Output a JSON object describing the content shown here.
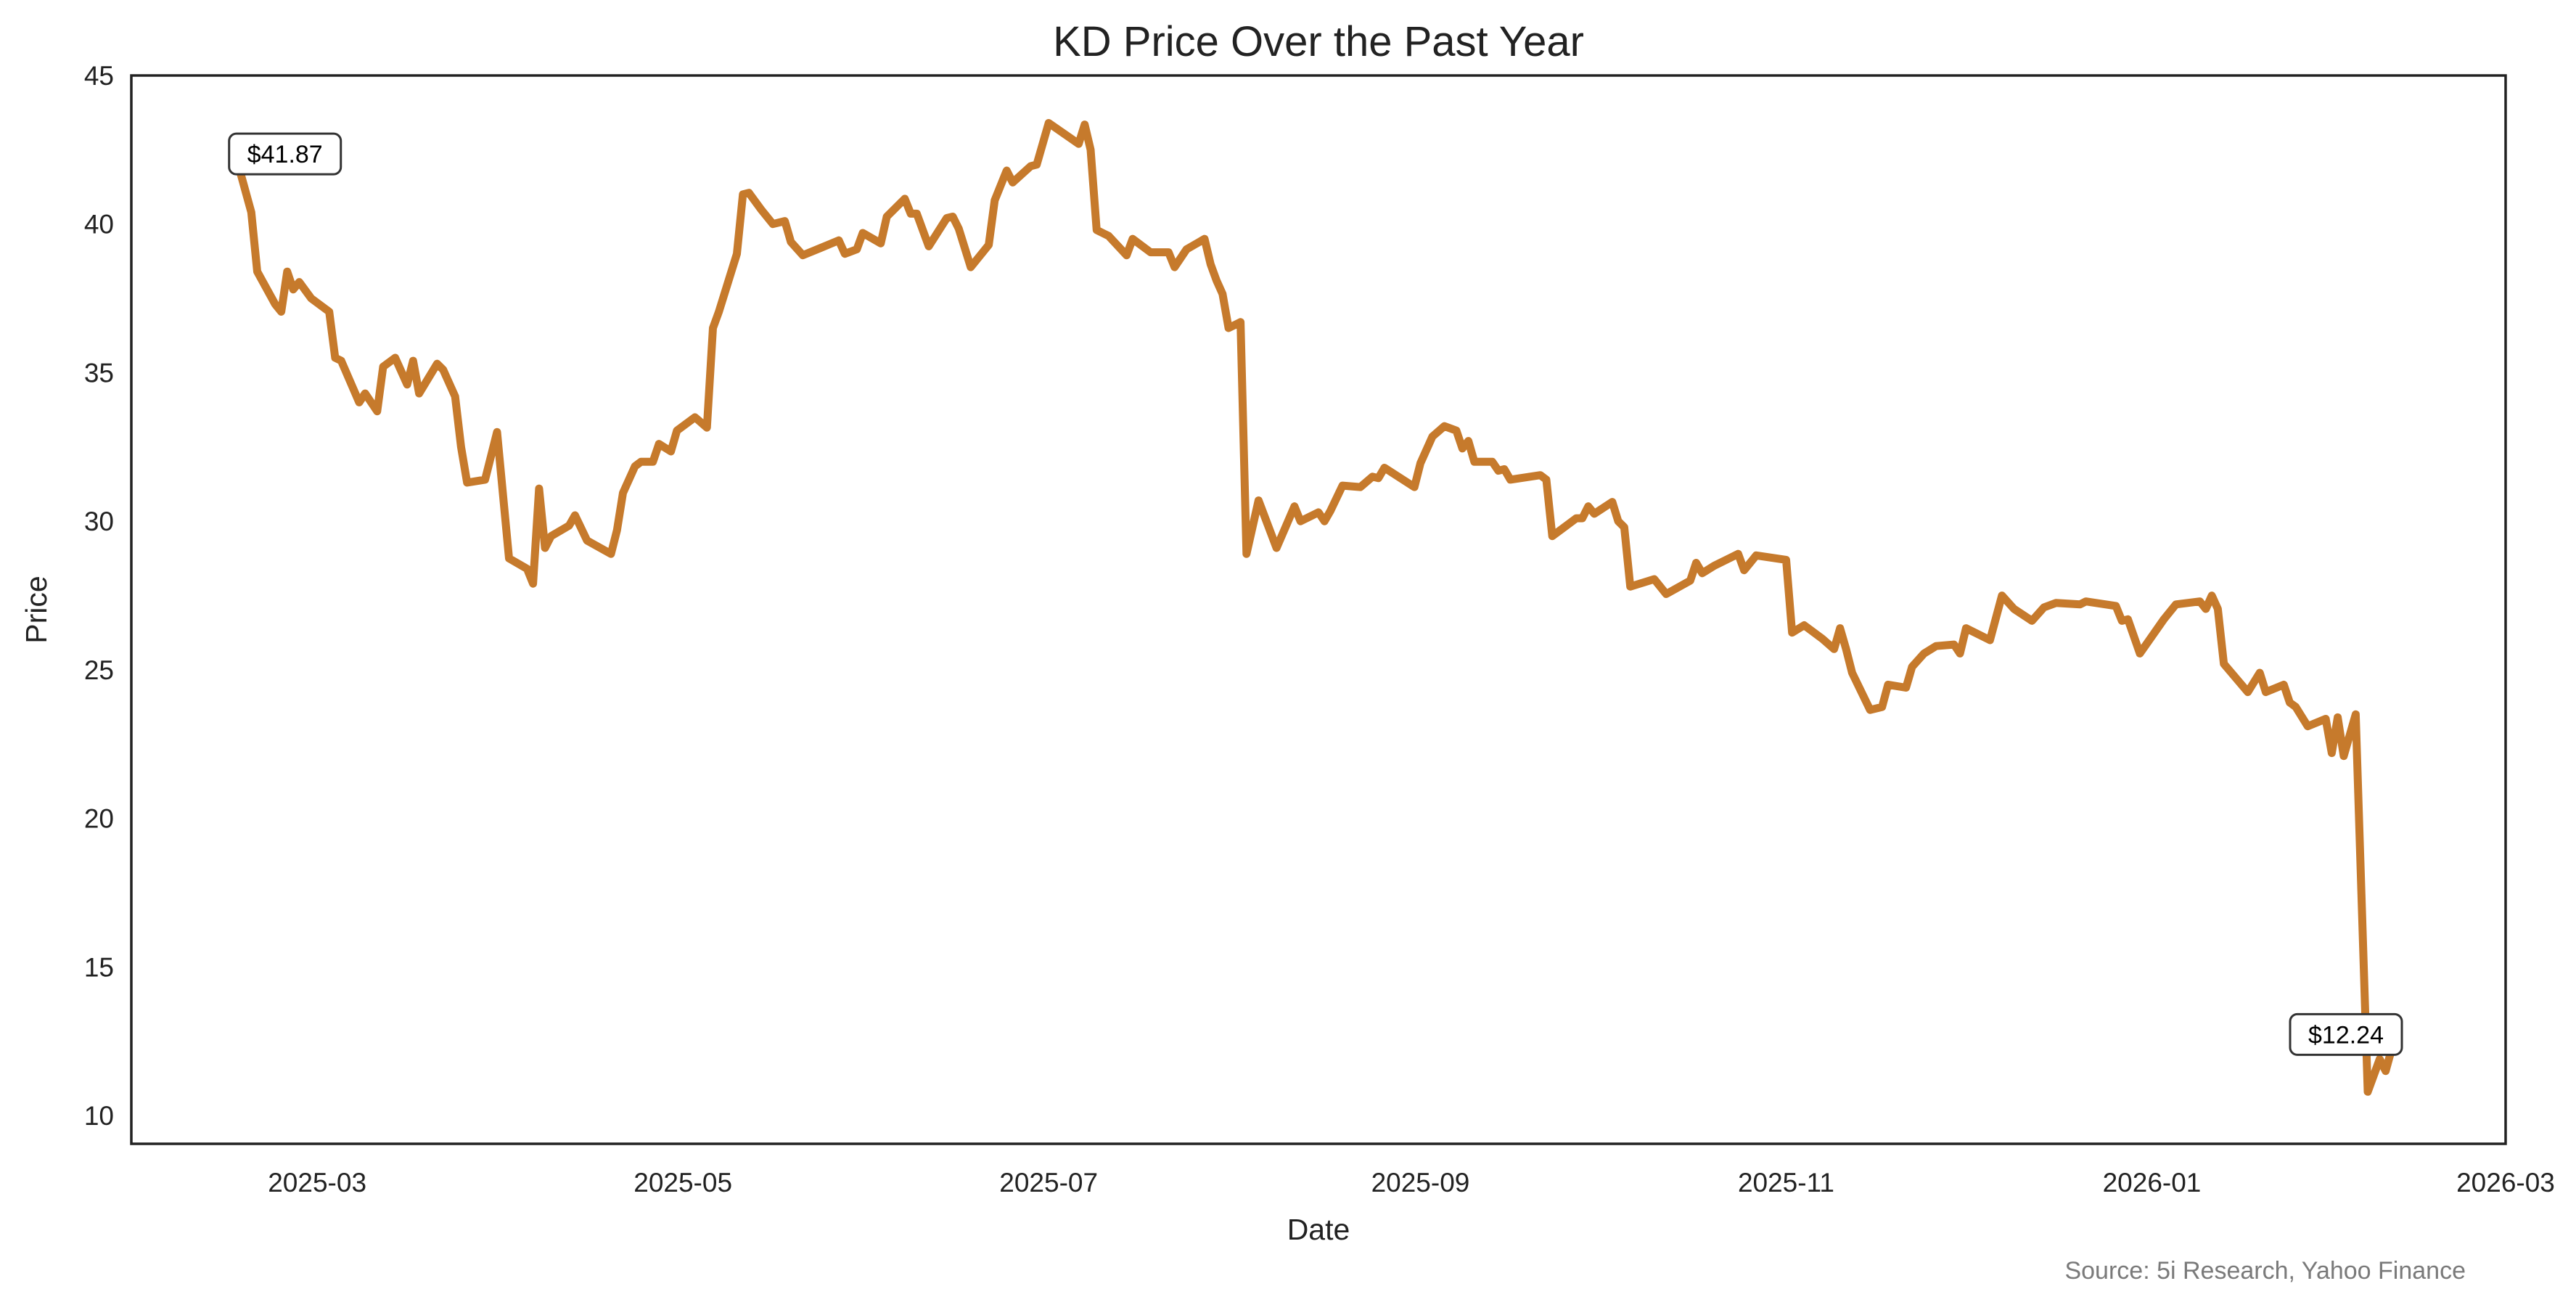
{
  "chart_data": {
    "type": "line",
    "title": "KD Price Over the Past Year",
    "xlabel": "Date",
    "ylabel": "Price",
    "source": "Source: 5i Research, Yahoo Finance",
    "xlim": [
      "2025-01-29",
      "2026-03-01"
    ],
    "ylim": [
      9.05,
      45
    ],
    "grid": false,
    "line_color": "#C67A2C",
    "x_ticks": [
      "2025-03",
      "2025-05",
      "2025-07",
      "2025-09",
      "2025-11",
      "2026-01",
      "2026-03"
    ],
    "y_ticks": [
      10,
      15,
      20,
      25,
      30,
      35,
      40,
      45
    ],
    "annotations": [
      {
        "date": "2025-02-16",
        "value": 41.87,
        "text": "$41.87"
      },
      {
        "date": "2026-02-10",
        "value": 12.24,
        "text": "$12.24"
      }
    ],
    "series": [
      {
        "name": "KD",
        "points": [
          [
            "2025-02-16",
            41.87
          ],
          [
            "2025-02-18",
            40.4
          ],
          [
            "2025-02-19",
            38.4
          ],
          [
            "2025-02-22",
            37.3
          ],
          [
            "2025-02-23",
            37.05
          ],
          [
            "2025-02-24",
            38.4
          ],
          [
            "2025-02-25",
            37.8
          ],
          [
            "2025-02-26",
            38.05
          ],
          [
            "2025-02-28",
            37.5
          ],
          [
            "2025-03-02",
            37.2
          ],
          [
            "2025-03-03",
            37.05
          ],
          [
            "2025-03-04",
            35.5
          ],
          [
            "2025-03-05",
            35.4
          ],
          [
            "2025-03-08",
            34.0
          ],
          [
            "2025-03-09",
            34.3
          ],
          [
            "2025-03-11",
            33.7
          ],
          [
            "2025-03-12",
            35.2
          ],
          [
            "2025-03-14",
            35.5
          ],
          [
            "2025-03-16",
            34.6
          ],
          [
            "2025-03-17",
            35.4
          ],
          [
            "2025-03-18",
            34.3
          ],
          [
            "2025-03-21",
            35.3
          ],
          [
            "2025-03-22",
            35.1
          ],
          [
            "2025-03-24",
            34.2
          ],
          [
            "2025-03-25",
            32.5
          ],
          [
            "2025-03-26",
            31.3
          ],
          [
            "2025-03-29",
            31.4
          ],
          [
            "2025-03-31",
            33.0
          ],
          [
            "2025-04-02",
            28.75
          ],
          [
            "2025-04-05",
            28.4
          ],
          [
            "2025-04-06",
            27.9
          ],
          [
            "2025-04-07",
            31.1
          ],
          [
            "2025-04-08",
            29.1
          ],
          [
            "2025-04-09",
            29.5
          ],
          [
            "2025-04-12",
            29.85
          ],
          [
            "2025-04-13",
            30.2
          ],
          [
            "2025-04-15",
            29.35
          ],
          [
            "2025-04-19",
            28.9
          ],
          [
            "2025-04-20",
            29.7
          ],
          [
            "2025-04-21",
            30.95
          ],
          [
            "2025-04-23",
            31.85
          ],
          [
            "2025-04-24",
            32.0
          ],
          [
            "2025-04-26",
            32.0
          ],
          [
            "2025-04-27",
            32.6
          ],
          [
            "2025-04-29",
            32.35
          ],
          [
            "2025-04-30",
            33.05
          ],
          [
            "2025-05-03",
            33.5
          ],
          [
            "2025-05-05",
            33.15
          ],
          [
            "2025-05-06",
            36.5
          ],
          [
            "2025-05-07",
            37.05
          ],
          [
            "2025-05-10",
            39.0
          ],
          [
            "2025-05-11",
            41.0
          ],
          [
            "2025-05-12",
            41.05
          ],
          [
            "2025-05-14",
            40.5
          ],
          [
            "2025-05-16",
            40.0
          ],
          [
            "2025-05-18",
            40.1
          ],
          [
            "2025-05-19",
            39.4
          ],
          [
            "2025-05-21",
            38.95
          ],
          [
            "2025-05-24",
            39.2
          ],
          [
            "2025-05-27",
            39.45
          ],
          [
            "2025-05-28",
            39.0
          ],
          [
            "2025-05-30",
            39.15
          ],
          [
            "2025-05-31",
            39.7
          ],
          [
            "2025-06-03",
            39.35
          ],
          [
            "2025-06-04",
            40.25
          ],
          [
            "2025-06-07",
            40.85
          ],
          [
            "2025-06-08",
            40.35
          ],
          [
            "2025-06-09",
            40.35
          ],
          [
            "2025-06-11",
            39.25
          ],
          [
            "2025-06-14",
            40.2
          ],
          [
            "2025-06-15",
            40.25
          ],
          [
            "2025-06-16",
            39.85
          ],
          [
            "2025-06-18",
            38.55
          ],
          [
            "2025-06-21",
            39.3
          ],
          [
            "2025-06-22",
            40.8
          ],
          [
            "2025-06-24",
            41.8
          ],
          [
            "2025-06-25",
            41.4
          ],
          [
            "2025-06-28",
            41.95
          ],
          [
            "2025-06-29",
            42.0
          ],
          [
            "2025-07-01",
            43.4
          ],
          [
            "2025-07-06",
            42.7
          ],
          [
            "2025-07-07",
            43.35
          ],
          [
            "2025-07-08",
            42.5
          ],
          [
            "2025-07-09",
            39.8
          ],
          [
            "2025-07-11",
            39.6
          ],
          [
            "2025-07-14",
            38.95
          ],
          [
            "2025-07-15",
            39.5
          ],
          [
            "2025-07-18",
            39.05
          ],
          [
            "2025-07-21",
            39.05
          ],
          [
            "2025-07-22",
            38.55
          ],
          [
            "2025-07-24",
            39.15
          ],
          [
            "2025-07-27",
            39.5
          ],
          [
            "2025-07-28",
            38.65
          ],
          [
            "2025-07-29",
            38.1
          ],
          [
            "2025-07-30",
            37.65
          ],
          [
            "2025-07-31",
            36.5
          ],
          [
            "2025-08-02",
            36.7
          ],
          [
            "2025-08-03",
            28.9
          ],
          [
            "2025-08-05",
            30.7
          ],
          [
            "2025-08-08",
            29.1
          ],
          [
            "2025-08-11",
            30.5
          ],
          [
            "2025-08-12",
            30.0
          ],
          [
            "2025-08-15",
            30.3
          ],
          [
            "2025-08-16",
            30.0
          ],
          [
            "2025-08-17",
            30.35
          ],
          [
            "2025-08-19",
            31.2
          ],
          [
            "2025-08-22",
            31.15
          ],
          [
            "2025-08-24",
            31.5
          ],
          [
            "2025-08-25",
            31.45
          ],
          [
            "2025-08-26",
            31.8
          ],
          [
            "2025-08-31",
            31.15
          ],
          [
            "2025-09-01",
            31.95
          ],
          [
            "2025-09-03",
            32.85
          ],
          [
            "2025-09-05",
            33.2
          ],
          [
            "2025-09-07",
            33.05
          ],
          [
            "2025-09-08",
            32.45
          ],
          [
            "2025-09-09",
            32.7
          ],
          [
            "2025-09-10",
            32.0
          ],
          [
            "2025-09-13",
            32.0
          ],
          [
            "2025-09-14",
            31.7
          ],
          [
            "2025-09-15",
            31.75
          ],
          [
            "2025-09-16",
            31.4
          ],
          [
            "2025-09-21",
            31.55
          ],
          [
            "2025-09-22",
            31.4
          ],
          [
            "2025-09-23",
            29.5
          ],
          [
            "2025-09-27",
            30.1
          ],
          [
            "2025-09-28",
            30.1
          ],
          [
            "2025-09-29",
            30.5
          ],
          [
            "2025-09-30",
            30.25
          ],
          [
            "2025-10-03",
            30.65
          ],
          [
            "2025-10-04",
            30.0
          ],
          [
            "2025-10-05",
            29.8
          ],
          [
            "2025-10-06",
            27.8
          ],
          [
            "2025-10-10",
            28.05
          ],
          [
            "2025-10-12",
            27.55
          ],
          [
            "2025-10-16",
            28.0
          ],
          [
            "2025-10-17",
            28.6
          ],
          [
            "2025-10-18",
            28.25
          ],
          [
            "2025-10-20",
            28.5
          ],
          [
            "2025-10-24",
            28.9
          ],
          [
            "2025-10-25",
            28.35
          ],
          [
            "2025-10-27",
            28.85
          ],
          [
            "2025-11-01",
            28.7
          ],
          [
            "2025-11-02",
            26.25
          ],
          [
            "2025-11-04",
            26.5
          ],
          [
            "2025-11-07",
            26.05
          ],
          [
            "2025-11-09",
            25.7
          ],
          [
            "2025-11-10",
            26.4
          ],
          [
            "2025-11-11",
            25.7
          ],
          [
            "2025-11-12",
            24.9
          ],
          [
            "2025-11-15",
            23.65
          ],
          [
            "2025-11-17",
            23.75
          ],
          [
            "2025-11-18",
            24.5
          ],
          [
            "2025-11-21",
            24.4
          ],
          [
            "2025-11-22",
            25.1
          ],
          [
            "2025-11-24",
            25.55
          ],
          [
            "2025-11-26",
            25.8
          ],
          [
            "2025-11-29",
            25.85
          ],
          [
            "2025-11-30",
            25.55
          ],
          [
            "2025-12-01",
            26.4
          ],
          [
            "2025-12-05",
            26.0
          ],
          [
            "2025-12-07",
            27.5
          ],
          [
            "2025-12-09",
            27.05
          ],
          [
            "2025-12-12",
            26.65
          ],
          [
            "2025-12-14",
            27.1
          ],
          [
            "2025-12-16",
            27.25
          ],
          [
            "2025-12-20",
            27.2
          ],
          [
            "2025-12-21",
            27.3
          ],
          [
            "2025-12-26",
            27.15
          ],
          [
            "2025-12-27",
            26.65
          ],
          [
            "2025-12-28",
            26.7
          ],
          [
            "2025-12-30",
            25.55
          ],
          [
            "2026-01-03",
            26.7
          ],
          [
            "2026-01-05",
            27.2
          ],
          [
            "2026-01-09",
            27.3
          ],
          [
            "2026-01-10",
            27.05
          ],
          [
            "2026-01-11",
            27.5
          ],
          [
            "2026-01-12",
            27.05
          ],
          [
            "2026-01-13",
            25.2
          ],
          [
            "2026-01-17",
            24.25
          ],
          [
            "2026-01-19",
            24.9
          ],
          [
            "2026-01-20",
            24.25
          ],
          [
            "2026-01-23",
            24.5
          ],
          [
            "2026-01-24",
            23.9
          ],
          [
            "2026-01-25",
            23.75
          ],
          [
            "2026-01-27",
            23.1
          ],
          [
            "2026-01-30",
            23.35
          ],
          [
            "2026-01-31",
            22.2
          ],
          [
            "2026-02-01",
            23.4
          ],
          [
            "2026-02-02",
            22.1
          ],
          [
            "2026-02-04",
            23.5
          ],
          [
            "2026-02-06",
            10.8
          ],
          [
            "2026-02-08",
            11.9
          ],
          [
            "2026-02-09",
            11.5
          ],
          [
            "2026-02-10",
            12.24
          ]
        ]
      }
    ]
  }
}
